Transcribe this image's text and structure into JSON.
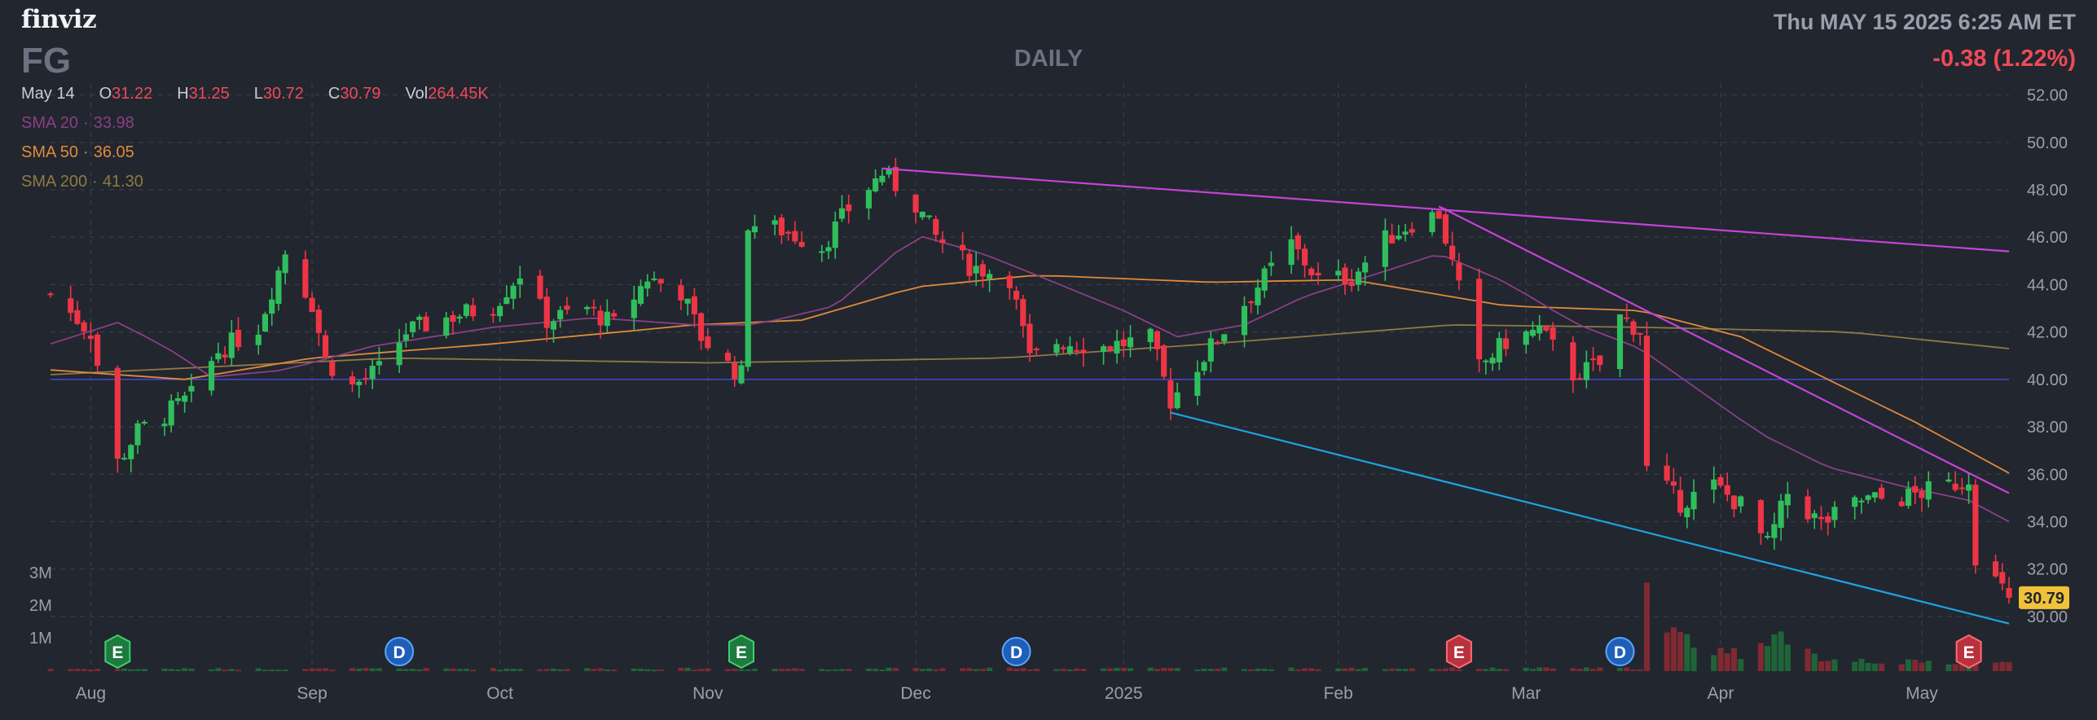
{
  "header": {
    "logo": "finviz",
    "ticker": "FG",
    "timeframe": "DAILY",
    "datetime": "Thu MAY 15 2025 6:25 AM ET",
    "change": "-0.38 (1.22%)"
  },
  "ohlc": {
    "date": "May 14",
    "o_label": "O",
    "o": "31.22",
    "h_label": "H",
    "h": "31.25",
    "l_label": "L",
    "l": "30.72",
    "c_label": "C",
    "c": "30.79",
    "vol_label": "Vol",
    "vol": "264.45K"
  },
  "sma": [
    {
      "label": "SMA 20",
      "value": "33.98",
      "color": "#8a3f86"
    },
    {
      "label": "SMA 50",
      "value": "36.05",
      "color": "#e08a3a"
    },
    {
      "label": "SMA 200",
      "value": "41.30",
      "color": "#8e7a44"
    }
  ],
  "colors": {
    "background": "#22262f",
    "up": "#2fbe5c",
    "down": "#ee3545",
    "grid": "#353a45",
    "axis_text": "#9aa0ab",
    "trendline_magenta": "#c443d8",
    "trendline_blue": "#1fa3e0",
    "support_line": "#3f47c7",
    "sma20": "#8a3f86",
    "sma50": "#e08a3a",
    "sma200": "#8e7a44",
    "last_price_bg": "#f0c23a"
  },
  "chart_data": {
    "type": "candlestick",
    "x_start": "2024-07-26",
    "x_end": "2025-05-14",
    "ylim": [
      29.0,
      52.5
    ],
    "y_ticks": [
      "52.00",
      "50.00",
      "48.00",
      "46.00",
      "44.00",
      "42.00",
      "40.00",
      "38.00",
      "36.00",
      "34.00",
      "32.00",
      "30.00"
    ],
    "x_ticks": [
      {
        "label": "Aug",
        "date": "2024-08-01"
      },
      {
        "label": "Sep",
        "date": "2024-09-03"
      },
      {
        "label": "Oct",
        "date": "2024-10-01"
      },
      {
        "label": "Nov",
        "date": "2024-11-01"
      },
      {
        "label": "Dec",
        "date": "2024-12-02"
      },
      {
        "label": "2025",
        "date": "2025-01-02"
      },
      {
        "label": "Feb",
        "date": "2025-02-03"
      },
      {
        "label": "Mar",
        "date": "2025-03-03"
      },
      {
        "label": "Apr",
        "date": "2025-04-01"
      },
      {
        "label": "May",
        "date": "2025-05-01"
      }
    ],
    "volume_ticks": [
      "3M",
      "2M",
      "1M"
    ],
    "last_price": "30.79",
    "horizontal_line": 40.0,
    "trendlines": [
      {
        "name": "upper-resistance",
        "color": "magenta",
        "from": {
          "date": "2024-11-27",
          "y": 48.9
        },
        "to": {
          "date": "2025-05-14",
          "y": 45.4
        }
      },
      {
        "name": "falling-resistance",
        "color": "magenta",
        "from": {
          "date": "2025-02-18",
          "y": 47.3
        },
        "to": {
          "date": "2025-05-14",
          "y": 35.2
        }
      },
      {
        "name": "falling-support",
        "color": "blue",
        "from": {
          "date": "2025-01-09",
          "y": 38.6
        },
        "to": {
          "date": "2025-05-14",
          "y": 29.7
        }
      }
    ],
    "event_markers": [
      {
        "kind": "E",
        "date": "2024-08-05"
      },
      {
        "kind": "D",
        "date": "2024-09-16"
      },
      {
        "kind": "E",
        "date": "2024-11-06"
      },
      {
        "kind": "D",
        "date": "2024-12-17"
      },
      {
        "kind": "E",
        "date": "2025-02-21"
      },
      {
        "kind": "D",
        "date": "2025-03-17"
      },
      {
        "kind": "E",
        "date": "2025-05-08"
      }
    ],
    "candle_path": [
      [
        "2024-07-26",
        43.6
      ],
      [
        "2024-08-01",
        42.0
      ],
      [
        "2024-08-05",
        36.5
      ],
      [
        "2024-08-08",
        37.8
      ],
      [
        "2024-08-12",
        38.5
      ],
      [
        "2024-08-16",
        39.3
      ],
      [
        "2024-08-20",
        41.2
      ],
      [
        "2024-08-26",
        42.2
      ],
      [
        "2024-08-30",
        45.4
      ],
      [
        "2024-09-03",
        43.2
      ],
      [
        "2024-09-05",
        40.8
      ],
      [
        "2024-09-09",
        39.7
      ],
      [
        "2024-09-13",
        40.4
      ],
      [
        "2024-09-17",
        42.0
      ],
      [
        "2024-09-23",
        42.6
      ],
      [
        "2024-09-30",
        43.1
      ],
      [
        "2024-10-04",
        44.5
      ],
      [
        "2024-10-08",
        42.5
      ],
      [
        "2024-10-14",
        43.0
      ],
      [
        "2024-10-18",
        42.3
      ],
      [
        "2024-10-23",
        44.3
      ],
      [
        "2024-10-28",
        43.7
      ],
      [
        "2024-10-31",
        41.8
      ],
      [
        "2024-11-04",
        40.6
      ],
      [
        "2024-11-06",
        40.2
      ],
      [
        "2024-11-07",
        46.6
      ],
      [
        "2024-11-12",
        46.3
      ],
      [
        "2024-11-18",
        45.6
      ],
      [
        "2024-11-22",
        47.2
      ],
      [
        "2024-11-27",
        48.7
      ],
      [
        "2024-12-02",
        47.4
      ],
      [
        "2024-12-05",
        46.0
      ],
      [
        "2024-12-10",
        44.8
      ],
      [
        "2024-12-16",
        44.3
      ],
      [
        "2024-12-19",
        40.8
      ],
      [
        "2024-12-23",
        41.6
      ],
      [
        "2024-12-30",
        41.4
      ],
      [
        "2025-01-06",
        41.7
      ],
      [
        "2025-01-09",
        39.1
      ],
      [
        "2025-01-14",
        41.0
      ],
      [
        "2025-01-21",
        43.6
      ],
      [
        "2025-01-27",
        45.7
      ],
      [
        "2025-01-31",
        44.2
      ],
      [
        "2025-02-05",
        44.3
      ],
      [
        "2025-02-10",
        45.9
      ],
      [
        "2025-02-14",
        46.6
      ],
      [
        "2025-02-18",
        47.0
      ],
      [
        "2025-02-21",
        43.8
      ],
      [
        "2025-02-24",
        40.5
      ],
      [
        "2025-02-28",
        41.6
      ],
      [
        "2025-03-05",
        42.1
      ],
      [
        "2025-03-10",
        40.2
      ],
      [
        "2025-03-14",
        40.6
      ],
      [
        "2025-03-17",
        42.6
      ],
      [
        "2025-03-20",
        42.1
      ],
      [
        "2025-03-21",
        36.2
      ],
      [
        "2025-03-26",
        34.8
      ],
      [
        "2025-03-31",
        35.5
      ],
      [
        "2025-04-04",
        34.7
      ],
      [
        "2025-04-08",
        33.0
      ],
      [
        "2025-04-11",
        35.2
      ],
      [
        "2025-04-16",
        33.9
      ],
      [
        "2025-04-22",
        34.9
      ],
      [
        "2025-04-28",
        35.0
      ],
      [
        "2025-05-02",
        35.3
      ],
      [
        "2025-05-07",
        35.7
      ],
      [
        "2025-05-08",
        35.9
      ],
      [
        "2025-05-09",
        32.6
      ],
      [
        "2025-05-12",
        31.5
      ],
      [
        "2025-05-14",
        30.79
      ]
    ],
    "sma20_path": [
      [
        "2024-07-26",
        41.5
      ],
      [
        "2024-08-05",
        42.4
      ],
      [
        "2024-08-12",
        41.4
      ],
      [
        "2024-08-19",
        40.1
      ],
      [
        "2024-08-30",
        40.4
      ],
      [
        "2024-09-12",
        41.4
      ],
      [
        "2024-09-30",
        42.2
      ],
      [
        "2024-10-15",
        42.6
      ],
      [
        "2024-10-30",
        42.3
      ],
      [
        "2024-11-08",
        42.3
      ],
      [
        "2024-11-20",
        43.1
      ],
      [
        "2024-12-02",
        46.1
      ],
      [
        "2024-12-12",
        45.3
      ],
      [
        "2024-12-20",
        44.4
      ],
      [
        "2025-01-02",
        42.9
      ],
      [
        "2025-01-10",
        41.8
      ],
      [
        "2025-01-20",
        42.3
      ],
      [
        "2025-01-29",
        43.5
      ],
      [
        "2025-02-07",
        44.3
      ],
      [
        "2025-02-18",
        45.3
      ],
      [
        "2025-02-28",
        44.1
      ],
      [
        "2025-03-10",
        42.4
      ],
      [
        "2025-03-20",
        41.3
      ],
      [
        "2025-03-28",
        39.7
      ],
      [
        "2025-04-07",
        37.7
      ],
      [
        "2025-04-17",
        36.3
      ],
      [
        "2025-04-28",
        35.5
      ],
      [
        "2025-05-08",
        34.9
      ],
      [
        "2025-05-14",
        34.0
      ]
    ],
    "sma50_path": [
      [
        "2024-07-26",
        40.4
      ],
      [
        "2024-08-15",
        40.0
      ],
      [
        "2024-09-03",
        40.9
      ],
      [
        "2024-09-30",
        41.5
      ],
      [
        "2024-10-30",
        42.3
      ],
      [
        "2024-11-15",
        42.5
      ],
      [
        "2024-12-02",
        43.9
      ],
      [
        "2024-12-20",
        44.4
      ],
      [
        "2025-01-15",
        44.1
      ],
      [
        "2025-02-05",
        44.2
      ],
      [
        "2025-02-28",
        43.1
      ],
      [
        "2025-03-20",
        42.9
      ],
      [
        "2025-04-04",
        41.8
      ],
      [
        "2025-04-17",
        40.0
      ],
      [
        "2025-04-30",
        38.2
      ],
      [
        "2025-05-14",
        36.05
      ]
    ],
    "sma200_path": [
      [
        "2024-07-26",
        40.2
      ],
      [
        "2024-09-15",
        40.9
      ],
      [
        "2024-11-01",
        40.7
      ],
      [
        "2024-12-15",
        40.9
      ],
      [
        "2025-01-15",
        41.5
      ],
      [
        "2025-02-20",
        42.3
      ],
      [
        "2025-03-20",
        42.2
      ],
      [
        "2025-04-20",
        42.0
      ],
      [
        "2025-05-14",
        41.3
      ]
    ],
    "volume_profile_millions": [
      [
        "2024-07-26",
        0.08
      ],
      [
        "2025-03-20",
        0.1
      ],
      [
        "2025-03-21",
        3.0
      ],
      [
        "2025-03-24",
        1.3
      ],
      [
        "2025-04-04",
        0.6
      ],
      [
        "2025-04-08",
        1.5
      ],
      [
        "2025-04-11",
        0.8
      ],
      [
        "2025-04-16",
        0.5
      ],
      [
        "2025-04-30",
        0.3
      ],
      [
        "2025-05-09",
        0.4
      ],
      [
        "2025-05-14",
        0.26
      ]
    ]
  }
}
